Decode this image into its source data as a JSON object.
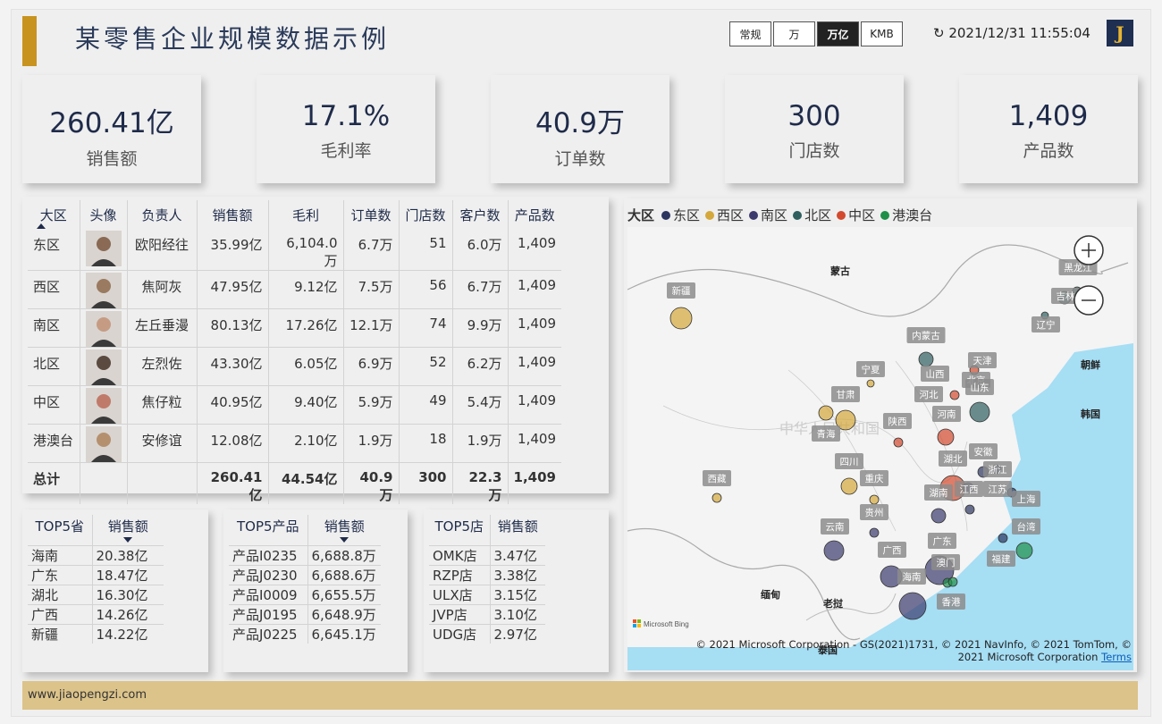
{
  "header": {
    "title": "某零售企业规模数据示例",
    "units": [
      "常规",
      "万",
      "万亿",
      "KMB"
    ],
    "active_unit": "万亿",
    "refresh_text": "↻ 2021/12/31 11:55:04",
    "logo": "J"
  },
  "kpis": [
    {
      "value": "260.41亿",
      "label": "销售额"
    },
    {
      "value": "17.1%",
      "label": "毛利率"
    },
    {
      "value": "40.9万",
      "label": "订单数"
    },
    {
      "value": "300",
      "label": "门店数"
    },
    {
      "value": "1,409",
      "label": "产品数"
    }
  ],
  "region_table": {
    "headers": [
      "大区",
      "头像",
      "负责人",
      "销售额",
      "毛利",
      "订单数",
      "门店数",
      "客户数",
      "产品数"
    ],
    "rows": [
      [
        "东区",
        "欧阳经往",
        "35.99亿",
        "6,104.0万",
        "6.7万",
        "51",
        "6.0万",
        "1,409"
      ],
      [
        "西区",
        "焦阿灰",
        "47.95亿",
        "9.12亿",
        "7.5万",
        "56",
        "6.7万",
        "1,409"
      ],
      [
        "南区",
        "左丘垂漫",
        "80.13亿",
        "17.26亿",
        "12.1万",
        "74",
        "9.9万",
        "1,409"
      ],
      [
        "北区",
        "左烈佐",
        "43.30亿",
        "6.05亿",
        "6.9万",
        "52",
        "6.2万",
        "1,409"
      ],
      [
        "中区",
        "焦仔粒",
        "40.95亿",
        "9.40亿",
        "5.9万",
        "49",
        "5.4万",
        "1,409"
      ],
      [
        "港澳台",
        "安修谊",
        "12.08亿",
        "2.10亿",
        "1.9万",
        "18",
        "1.9万",
        "1,409"
      ]
    ],
    "total": [
      "总计",
      "260.41亿",
      "44.54亿",
      "40.9万",
      "300",
      "22.3万",
      "1,409"
    ]
  },
  "top_province": {
    "headers": [
      "TOP5省",
      "销售额"
    ],
    "rows": [
      [
        "海南",
        "20.38亿"
      ],
      [
        "广东",
        "18.47亿"
      ],
      [
        "湖北",
        "16.30亿"
      ],
      [
        "广西",
        "14.26亿"
      ],
      [
        "新疆",
        "14.22亿"
      ]
    ]
  },
  "top_product": {
    "headers": [
      "TOP5产品",
      "销售额"
    ],
    "rows": [
      [
        "产品I0235",
        "6,688.8万"
      ],
      [
        "产品J0230",
        "6,688.6万"
      ],
      [
        "产品I0009",
        "6,655.5万"
      ],
      [
        "产品J0195",
        "6,648.9万"
      ],
      [
        "产品J0225",
        "6,645.1万"
      ]
    ]
  },
  "top_store": {
    "headers": [
      "TOP5店",
      "销售额"
    ],
    "rows": [
      [
        "OMK店",
        "3.47亿"
      ],
      [
        "RZP店",
        "3.38亿"
      ],
      [
        "ULX店",
        "3.15亿"
      ],
      [
        "JVP店",
        "3.10亿"
      ],
      [
        "UDG店",
        "2.97亿"
      ]
    ]
  },
  "map": {
    "legend_title": "大区",
    "legend": [
      {
        "name": "东区",
        "color": "#2b3560"
      },
      {
        "name": "西区",
        "color": "#d4a83a"
      },
      {
        "name": "南区",
        "color": "#3b3a6e"
      },
      {
        "name": "北区",
        "color": "#2f5e5e"
      },
      {
        "name": "中区",
        "color": "#d34a2e"
      },
      {
        "name": "港澳台",
        "color": "#1e8f48"
      }
    ],
    "country_labels": [
      "蒙古",
      "朝鲜",
      "韩国",
      "缅甸",
      "老挝",
      "泰国",
      "中华人民共和国"
    ],
    "province_labels": [
      "黑龙江",
      "吉林",
      "辽宁",
      "新疆",
      "内蒙古",
      "天津",
      "北京",
      "宁夏",
      "山西",
      "河北",
      "山东",
      "甘肃",
      "河南",
      "陕西",
      "青海",
      "安徽",
      "湖北",
      "浙江",
      "西藏",
      "四川",
      "重庆",
      "湖南",
      "江西",
      "江苏",
      "上海",
      "贵州",
      "云南",
      "台湾",
      "广西",
      "广东",
      "福建",
      "澳门",
      "海南",
      "香港"
    ],
    "bing_label": "Microsoft Bing",
    "attribution": "© 2021 Microsoft Corporation - GS(2021)1731, © 2021 NavInfo, © 2021 TomTom, © 2021 Microsoft Corporation",
    "terms": "Terms"
  },
  "footer": {
    "text": "www.jiaopengzi.com"
  }
}
